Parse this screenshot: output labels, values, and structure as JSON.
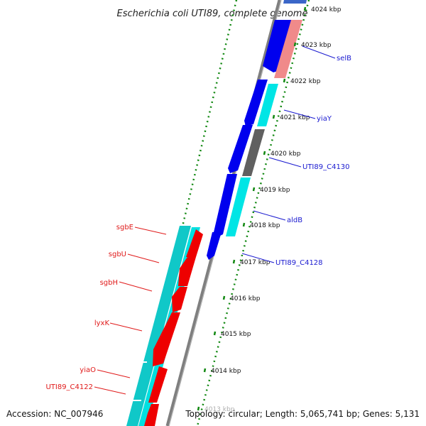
{
  "header": {
    "title": "Escherichia coli UTI89, complete genome"
  },
  "footer": {
    "accession": "Accession: NC_007946",
    "summary": "Topology: circular; Length: 5,065,741 bp; Genes: 5,131"
  },
  "colors": {
    "forward_cds": "#0000ee",
    "forward_rna_cyan": "#00e5e5",
    "forward_pink": "#f08a8a",
    "forward_gray": "#606060",
    "reverse_cds": "#ee0000",
    "reverse_rna_teal": "#10c8c8",
    "backbone": "#7f7f7f",
    "tick": "#118811",
    "label_right": "#1a1ad0",
    "label_left": "#e01a1a"
  },
  "scale": {
    "ticks": [
      {
        "label": "4024 kbp"
      },
      {
        "label": "4023 kbp"
      },
      {
        "label": "4022 kbp"
      },
      {
        "label": "4021 kbp"
      },
      {
        "label": "4020 kbp"
      },
      {
        "label": "4019 kbp"
      },
      {
        "label": "4018 kbp"
      },
      {
        "label": "4017 kbp"
      },
      {
        "label": "4016 kbp"
      },
      {
        "label": "4015 kbp"
      },
      {
        "label": "4014 kbp"
      },
      {
        "label": "4013 kbp"
      }
    ]
  },
  "genes_right": [
    {
      "name": "selB"
    },
    {
      "name": "yiaY"
    },
    {
      "name": "UTI89_C4130"
    },
    {
      "name": "aldB"
    },
    {
      "name": "UTI89_C4128"
    }
  ],
  "genes_left": [
    {
      "name": "sgbE"
    },
    {
      "name": "sgbU"
    },
    {
      "name": "sgbH"
    },
    {
      "name": "lyxK"
    },
    {
      "name": "yiaO"
    },
    {
      "name": "UTI89_C4122"
    }
  ]
}
